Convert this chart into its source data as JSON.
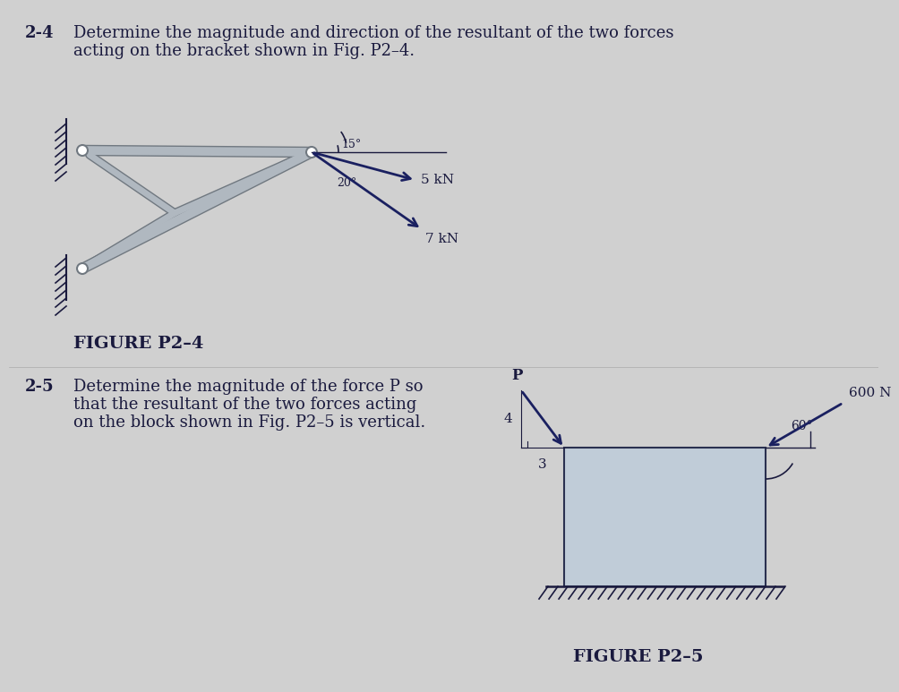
{
  "bg_color": "#d0d0d0",
  "text_color": "#1a1a3e",
  "fig_width": 9.71,
  "fig_height": 7.53,
  "problem24": {
    "label": "2-4",
    "text_line1": "Determine the magnitude and direction of the resultant of the two forces",
    "text_line2": "acting on the bracket shown in Fig. P2–4.",
    "figure_label": "FIGURE P2–4",
    "force1": "5 kN",
    "force2": "7 kN",
    "angle1_label": "15°",
    "angle2_label": "20°"
  },
  "problem25": {
    "label": "2-5",
    "text_line1": "Determine the magnitude of the force P so",
    "text_line2": "that the resultant of the two forces acting",
    "text_line3": "on the block shown in Fig. P2–5 is vertical.",
    "figure_label": "FIGURE P2–5",
    "force_label": "600 N",
    "P_label": "P",
    "angle_label": "60°",
    "side4": "4",
    "side3": "3"
  },
  "bracket_color": "#b0b8c0",
  "bracket_edge": "#707880",
  "force_color": "#1a2060",
  "block_face": "#c0ccd8",
  "block_edge": "#2a3050"
}
